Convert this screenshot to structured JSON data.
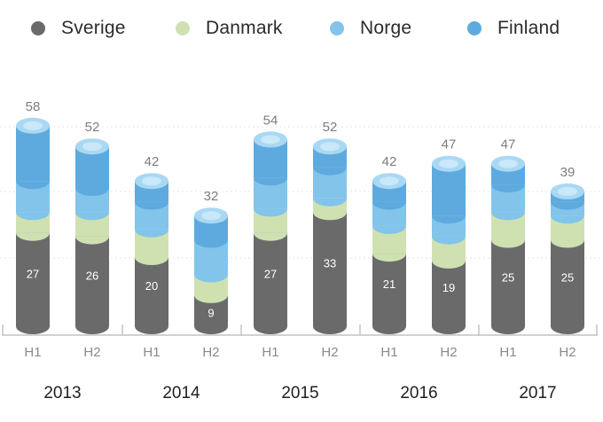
{
  "colors": {
    "sverige": "#6a6a6b",
    "danmark": "#cfe1b1",
    "norge": "#82c4ea",
    "finland": "#5eaadf",
    "cap": "#a9d8f3",
    "cap_inner": "#c9e8f9",
    "axis": "#c2c2c2",
    "grid": "#e6e6e6"
  },
  "legend": [
    {
      "label": "Sverige",
      "color": "#6a6a6b"
    },
    {
      "label": "Danmark",
      "color": "#cfe1b1"
    },
    {
      "label": "Norge",
      "color": "#82c4ea"
    },
    {
      "label": "Finland",
      "color": "#5eaadf"
    }
  ],
  "chart_data": {
    "type": "bar",
    "stacked": true,
    "categories": [
      "H1",
      "H2",
      "H1",
      "H2",
      "H1",
      "H2",
      "H1",
      "H2",
      "H1",
      "H2"
    ],
    "groups": [
      "2013",
      "2014",
      "2015",
      "2016",
      "2017"
    ],
    "totals": [
      58,
      52,
      42,
      32,
      54,
      52,
      42,
      47,
      47,
      39
    ],
    "series": [
      {
        "name": "Sverige",
        "values": [
          27,
          26,
          20,
          9,
          27,
          33,
          21,
          19,
          25,
          25
        ]
      },
      {
        "name": "Danmark",
        "values": [
          6,
          7,
          8,
          6,
          7,
          4,
          8,
          7,
          8,
          7
        ]
      },
      {
        "name": "Norge",
        "values": [
          9,
          7,
          8,
          10,
          9,
          9,
          7,
          6,
          8,
          4
        ]
      },
      {
        "name": "Finland",
        "values": [
          16,
          12,
          6,
          7,
          11,
          6,
          6,
          15,
          6,
          3
        ]
      }
    ],
    "legend_position": "top",
    "ylim": [
      0,
      64
    ],
    "grid": true
  }
}
